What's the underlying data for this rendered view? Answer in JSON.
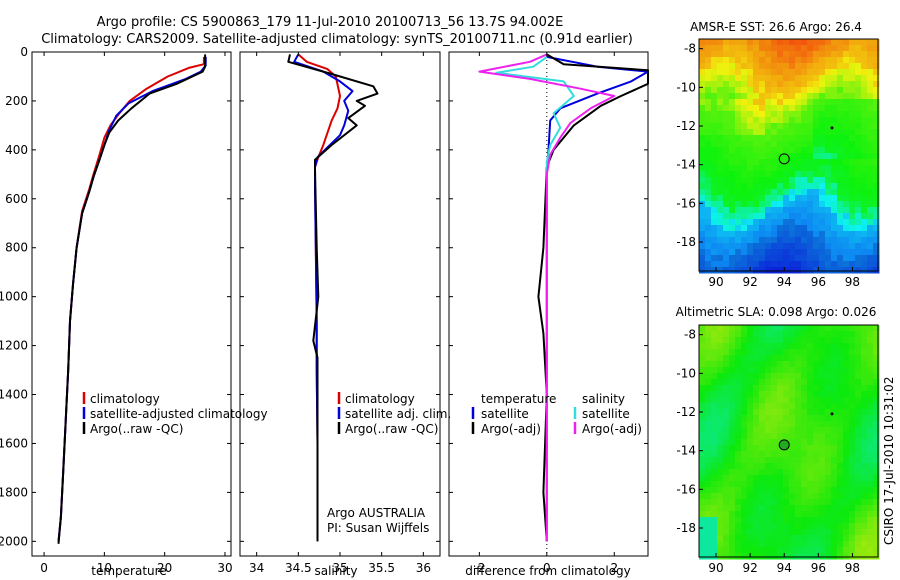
{
  "header": {
    "line1": "Argo profile: CS 5900863_179 11-Jul-2010 20100713_56 13.7S 94.002E",
    "line2": "Climatology: CARS2009. Satellite-adjusted climatology: synTS_20100711.nc (0.91d earlier)"
  },
  "side_label": "CSIRO 17-Jul-2010 10:31:02",
  "colors": {
    "climatology": "#dd0000",
    "satellite": "#0000dd",
    "argo": "#000000",
    "satellite_diff": "#33dddd",
    "argo_diff": "#ee22ee"
  },
  "chart_data": [
    {
      "type": "line",
      "name": "temperature",
      "xlabel": "temperature",
      "xlim": [
        -2,
        31
      ],
      "ylim": [
        2060,
        0
      ],
      "xticks": [
        "0",
        "10",
        "20",
        "30"
      ],
      "xtick_values": [
        0,
        10,
        20,
        30
      ],
      "yticks": [
        "0",
        "200",
        "400",
        "600",
        "800",
        "1000",
        "1200",
        "1400",
        "1600",
        "1800",
        "2000"
      ],
      "legend": [
        "climatology",
        "satellite-adjusted climatology",
        "Argo(..raw -QC)"
      ],
      "series": [
        {
          "name": "climatology",
          "color_key": "climatology",
          "points": [
            [
              26.5,
              20
            ],
            [
              26.5,
              50
            ],
            [
              24,
              65
            ],
            [
              20.5,
              100
            ],
            [
              17,
              150
            ],
            [
              14.2,
              200
            ],
            [
              12.5,
              250
            ],
            [
              11,
              300
            ],
            [
              10,
              350
            ],
            [
              9.2,
              420
            ],
            [
              8.2,
              500
            ],
            [
              7.5,
              560
            ],
            [
              6.3,
              650
            ],
            [
              5.4,
              800
            ],
            [
              4.8,
              950
            ],
            [
              4.3,
              1100
            ],
            [
              4,
              1300
            ],
            [
              3.6,
              1500
            ],
            [
              3.2,
              1700
            ],
            [
              2.8,
              1900
            ],
            [
              2.4,
              2000
            ]
          ]
        },
        {
          "name": "satellite-adjusted",
          "color_key": "satellite",
          "points": [
            [
              26.8,
              20
            ],
            [
              26.8,
              55
            ],
            [
              26,
              80
            ],
            [
              23.5,
              110
            ],
            [
              18,
              160
            ],
            [
              14,
              210
            ],
            [
              12,
              260
            ],
            [
              10.8,
              320
            ],
            [
              10,
              380
            ],
            [
              9.2,
              440
            ],
            [
              8.2,
              510
            ],
            [
              7.5,
              570
            ],
            [
              6.3,
              660
            ],
            [
              5.4,
              800
            ],
            [
              4.8,
              950
            ],
            [
              4.3,
              1100
            ],
            [
              4,
              1300
            ],
            [
              3.6,
              1500
            ],
            [
              3.2,
              1700
            ],
            [
              2.8,
              1900
            ],
            [
              2.4,
              2000
            ]
          ]
        },
        {
          "name": "Argo",
          "color_key": "argo",
          "points": [
            [
              26.7,
              10
            ],
            [
              26.7,
              60
            ],
            [
              26.3,
              80
            ],
            [
              22,
              130
            ],
            [
              17.5,
              170
            ],
            [
              14.5,
              230
            ],
            [
              12.3,
              280
            ],
            [
              10.8,
              330
            ],
            [
              10,
              380
            ],
            [
              9.2,
              440
            ],
            [
              8.2,
              510
            ],
            [
              7.5,
              570
            ],
            [
              6.3,
              660
            ],
            [
              5.4,
              800
            ],
            [
              4.8,
              950
            ],
            [
              4.3,
              1100
            ],
            [
              4,
              1300
            ],
            [
              3.6,
              1500
            ],
            [
              3.2,
              1700
            ],
            [
              2.8,
              1900
            ],
            [
              2.4,
              2010
            ]
          ]
        }
      ]
    },
    {
      "type": "line",
      "name": "salinity",
      "xlabel": "salinity",
      "xlim": [
        33.8,
        36.2
      ],
      "ylim": [
        2060,
        0
      ],
      "xticks": [
        "34",
        "34.5",
        "35",
        "35.5",
        "36"
      ],
      "xtick_values": [
        34,
        34.5,
        35,
        35.5,
        36
      ],
      "legend": [
        "climatology",
        "satellite adj. clim.",
        "Argo(..raw -QC)"
      ],
      "annotation": [
        "Argo AUSTRALIA",
        "PI: Susan Wijffels"
      ],
      "series": [
        {
          "name": "climatology",
          "color_key": "climatology",
          "points": [
            [
              34.5,
              10
            ],
            [
              34.6,
              40
            ],
            [
              34.85,
              70
            ],
            [
              34.95,
              100
            ],
            [
              35,
              180
            ],
            [
              34.97,
              230
            ],
            [
              34.9,
              280
            ],
            [
              34.85,
              330
            ],
            [
              34.8,
              380
            ],
            [
              34.74,
              430
            ],
            [
              34.7,
              470
            ],
            [
              34.7,
              550
            ],
            [
              34.71,
              800
            ],
            [
              34.72,
              1100
            ],
            [
              34.72,
              1300
            ],
            [
              34.73,
              1600
            ],
            [
              34.73,
              1900
            ],
            [
              34.73,
              2000
            ]
          ]
        },
        {
          "name": "satellite-adjusted",
          "color_key": "satellite",
          "points": [
            [
              34.5,
              10
            ],
            [
              34.45,
              40
            ],
            [
              34.8,
              80
            ],
            [
              35,
              120
            ],
            [
              35.15,
              160
            ],
            [
              35.05,
              200
            ],
            [
              35.1,
              240
            ],
            [
              35.05,
              300
            ],
            [
              35,
              340
            ],
            [
              34.85,
              390
            ],
            [
              34.73,
              430
            ],
            [
              34.7,
              470
            ],
            [
              34.7,
              550
            ],
            [
              34.71,
              800
            ],
            [
              34.72,
              1100
            ],
            [
              34.72,
              1300
            ],
            [
              34.73,
              1600
            ],
            [
              34.73,
              1900
            ],
            [
              34.73,
              2000
            ]
          ]
        },
        {
          "name": "Argo",
          "color_key": "argo",
          "points": [
            [
              34.4,
              10
            ],
            [
              34.38,
              40
            ],
            [
              34.9,
              90
            ],
            [
              35.4,
              140
            ],
            [
              35.45,
              170
            ],
            [
              35.2,
              200
            ],
            [
              35.3,
              220
            ],
            [
              35.1,
              270
            ],
            [
              35.2,
              300
            ],
            [
              34.9,
              380
            ],
            [
              34.7,
              440
            ],
            [
              34.7,
              480
            ],
            [
              34.72,
              800
            ],
            [
              34.74,
              1000
            ],
            [
              34.68,
              1180
            ],
            [
              34.73,
              1250
            ],
            [
              34.73,
              1600
            ],
            [
              34.73,
              1900
            ],
            [
              34.73,
              2000
            ]
          ]
        }
      ]
    },
    {
      "type": "line",
      "name": "difference",
      "xlabel": "difference from climatology",
      "xlim": [
        -2.9,
        3
      ],
      "ylim": [
        2060,
        0
      ],
      "xticks": [
        "-2",
        "0",
        "2"
      ],
      "xtick_values": [
        -2,
        0,
        2
      ],
      "legend_groups": [
        {
          "heading": "temperature",
          "items": [
            "satellite",
            "Argo(-adj)"
          ]
        },
        {
          "heading": "salinity",
          "items": [
            "satellite",
            "Argo(-adj)"
          ]
        }
      ],
      "series": [
        {
          "name": "temperature satellite",
          "color_key": "satellite",
          "points": [
            [
              0,
              20
            ],
            [
              1.5,
              60
            ],
            [
              3,
              80
            ],
            [
              2.5,
              120
            ],
            [
              1.5,
              170
            ],
            [
              0.4,
              230
            ],
            [
              0.1,
              280
            ],
            [
              0.05,
              400
            ],
            [
              0,
              480
            ],
            [
              0,
              800
            ],
            [
              0,
              2000
            ]
          ]
        },
        {
          "name": "temperature Argo(-adj)",
          "color_key": "argo",
          "points": [
            [
              0,
              10
            ],
            [
              0.5,
              50
            ],
            [
              3,
              75
            ],
            [
              3,
              130
            ],
            [
              2.2,
              180
            ],
            [
              1.6,
              220
            ],
            [
              0.8,
              300
            ],
            [
              0.2,
              400
            ],
            [
              0,
              470
            ],
            [
              -0.1,
              800
            ],
            [
              -0.25,
              1000
            ],
            [
              -0.1,
              1150
            ],
            [
              0,
              1400
            ],
            [
              -0.1,
              1800
            ],
            [
              0,
              2000
            ]
          ]
        },
        {
          "name": "salinity satellite",
          "color_key": "satellite_diff",
          "points": [
            [
              0,
              20
            ],
            [
              -0.4,
              60
            ],
            [
              -1.5,
              85
            ],
            [
              0.5,
              120
            ],
            [
              0.8,
              180
            ],
            [
              0.2,
              250
            ],
            [
              0.4,
              310
            ],
            [
              0.1,
              380
            ],
            [
              0,
              450
            ],
            [
              0,
              800
            ],
            [
              0,
              2000
            ]
          ]
        },
        {
          "name": "salinity Argo(-adj)",
          "color_key": "argo_diff",
          "points": [
            [
              0,
              10
            ],
            [
              -0.5,
              40
            ],
            [
              -2,
              80
            ],
            [
              -0.5,
              110
            ],
            [
              1,
              150
            ],
            [
              2,
              180
            ],
            [
              1.3,
              230
            ],
            [
              0.7,
              290
            ],
            [
              0.4,
              350
            ],
            [
              0.1,
              420
            ],
            [
              0,
              500
            ],
            [
              0,
              800
            ],
            [
              0,
              2000
            ]
          ]
        }
      ]
    },
    {
      "type": "heatmap",
      "name": "sst_map",
      "title": "AMSR-E SST: 26.6  Argo: 26.4",
      "xlim": [
        89,
        99.5
      ],
      "ylim": [
        -19.5,
        -7.5
      ],
      "xticks": [
        "90",
        "92",
        "94",
        "96",
        "98"
      ],
      "xtick_values": [
        90,
        92,
        94,
        96,
        98
      ],
      "yticks": [
        "-8",
        "-10",
        "-12",
        "-14",
        "-16",
        "-18"
      ],
      "ytick_values": [
        -8,
        -10,
        -12,
        -14,
        -16,
        -18
      ],
      "argo_position": [
        94.0,
        -13.7
      ]
    },
    {
      "type": "heatmap",
      "name": "sla_map",
      "title": "Altimetric SLA: 0.098  Argo: 0.026",
      "xlim": [
        89,
        99.5
      ],
      "ylim": [
        -19.5,
        -7.5
      ],
      "xticks": [
        "90",
        "92",
        "94",
        "96",
        "98"
      ],
      "xtick_values": [
        90,
        92,
        94,
        96,
        98
      ],
      "yticks": [
        "-8",
        "-10",
        "-12",
        "-14",
        "-16",
        "-18"
      ],
      "ytick_values": [
        -8,
        -10,
        -12,
        -14,
        -16,
        -18
      ],
      "argo_position": [
        94.0,
        -13.7
      ]
    }
  ]
}
